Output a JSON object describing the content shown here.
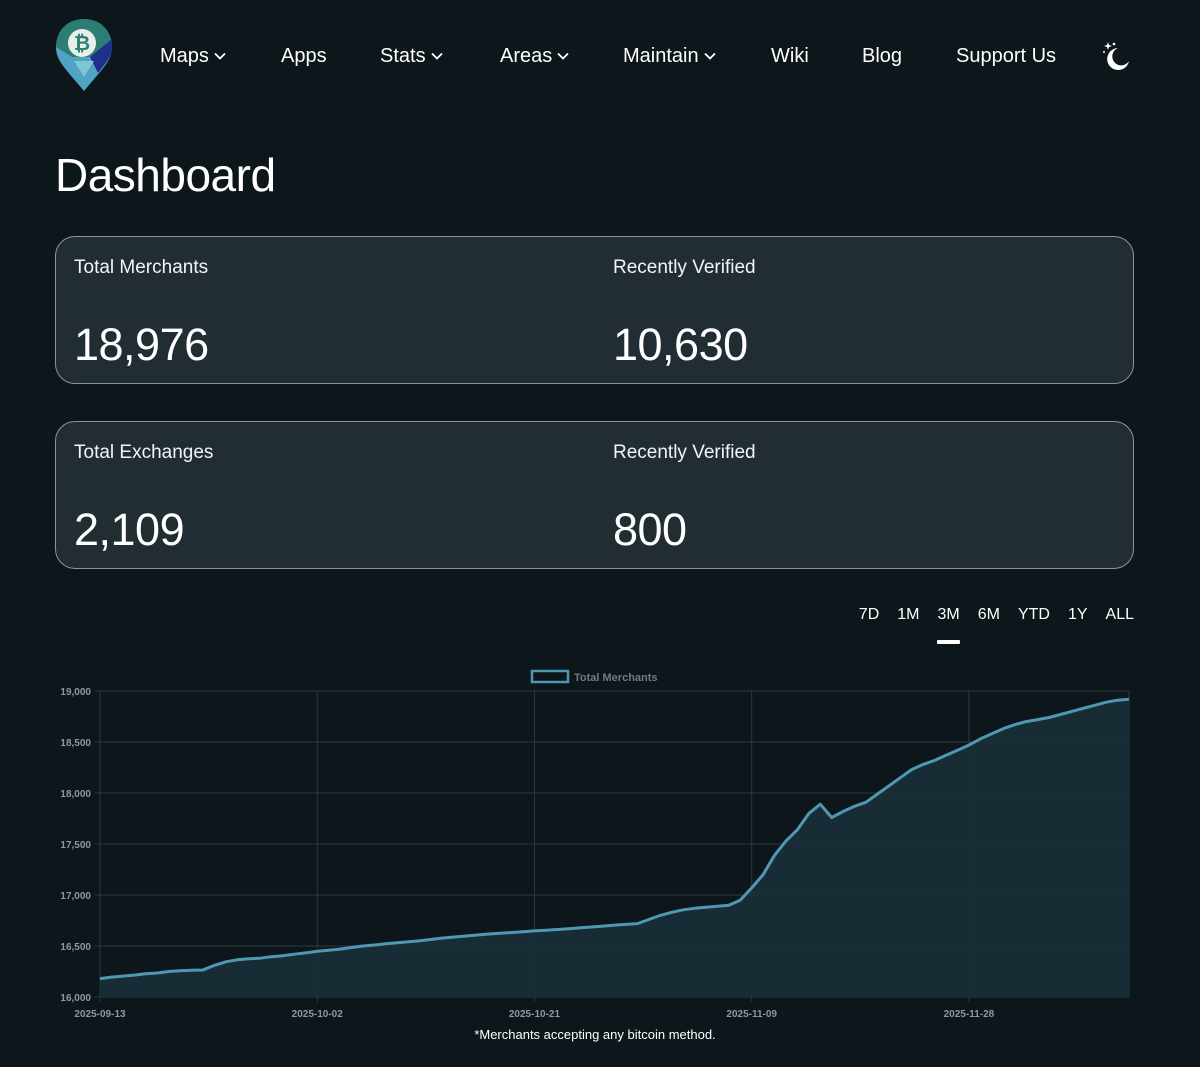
{
  "nav": {
    "items": [
      {
        "label": "Maps",
        "dropdown": true
      },
      {
        "label": "Apps",
        "dropdown": false
      },
      {
        "label": "Stats",
        "dropdown": true
      },
      {
        "label": "Areas",
        "dropdown": true
      },
      {
        "label": "Maintain",
        "dropdown": true
      },
      {
        "label": "Wiki",
        "dropdown": false
      },
      {
        "label": "Blog",
        "dropdown": false
      },
      {
        "label": "Support Us",
        "dropdown": false
      }
    ],
    "theme_icon": "moon-stars-icon",
    "logo_icon": "bitcoin-map-pin-icon"
  },
  "page": {
    "title": "Dashboard"
  },
  "merchants_card": {
    "total_label": "Total Merchants",
    "total_value": "18,976",
    "verified_label": "Recently Verified",
    "verified_value": "10,630"
  },
  "exchanges_card": {
    "total_label": "Total Exchanges",
    "total_value": "2,109",
    "verified_label": "Recently Verified",
    "verified_value": "800"
  },
  "ranges": {
    "options": [
      "7D",
      "1M",
      "3M",
      "6M",
      "YTD",
      "1Y",
      "ALL"
    ],
    "selected": "3M"
  },
  "colors": {
    "background": "#0c161b",
    "card": "#222d33",
    "line": "#4f98b4",
    "area": "#1a2f38",
    "grid": "#2b393f",
    "tick": "#8f999d"
  },
  "chart_data": {
    "type": "area",
    "legend": "Total Merchants",
    "legend_position": "top-center",
    "ylim": [
      16000,
      19000
    ],
    "yticks": [
      "19,000",
      "18,500",
      "18,000",
      "17,500",
      "17,000",
      "16,500",
      "16,000"
    ],
    "xticks": [
      "2025-09-13",
      "2025-10-02",
      "2025-10-21",
      "2025-11-09",
      "2025-11-28"
    ],
    "series": [
      {
        "name": "Total Merchants",
        "x_days": [
          0,
          1,
          2,
          3,
          4,
          5,
          6,
          7,
          8,
          9,
          10,
          11,
          12,
          13,
          14,
          15,
          16,
          17,
          18,
          19,
          20,
          21,
          22,
          23,
          24,
          25,
          26,
          27,
          28,
          29,
          30,
          31,
          32,
          33,
          34,
          35,
          36,
          37,
          38,
          39,
          40,
          41,
          42,
          43,
          44,
          45,
          46,
          47,
          48,
          49,
          50,
          51,
          52,
          53,
          54,
          55,
          56,
          57,
          58,
          59,
          60,
          61,
          62,
          63,
          64,
          65,
          66,
          67,
          68,
          69,
          70,
          71,
          72,
          73,
          74,
          75,
          76,
          77,
          78,
          79,
          80,
          81,
          82,
          83,
          84,
          85,
          86,
          87,
          88,
          89,
          90
        ],
        "values": [
          16180,
          16195,
          16205,
          16215,
          16228,
          16235,
          16250,
          16258,
          16262,
          16265,
          16310,
          16345,
          16365,
          16375,
          16380,
          16395,
          16405,
          16420,
          16432,
          16448,
          16458,
          16470,
          16485,
          16500,
          16510,
          16522,
          16532,
          16542,
          16552,
          16565,
          16578,
          16588,
          16598,
          16608,
          16618,
          16625,
          16632,
          16640,
          16648,
          16655,
          16662,
          16670,
          16678,
          16686,
          16695,
          16705,
          16712,
          16720,
          16760,
          16800,
          16830,
          16855,
          16870,
          16880,
          16890,
          16900,
          16950,
          17070,
          17200,
          17390,
          17530,
          17640,
          17800,
          17890,
          17760,
          17820,
          17870,
          17910,
          17990,
          18070,
          18150,
          18230,
          18280,
          18320,
          18370,
          18420,
          18470,
          18530,
          18580,
          18630,
          18670,
          18700,
          18720,
          18740,
          18770,
          18800,
          18830,
          18860,
          18890,
          18910,
          18920
        ]
      }
    ],
    "note": "*Merchants accepting any bitcoin method."
  }
}
